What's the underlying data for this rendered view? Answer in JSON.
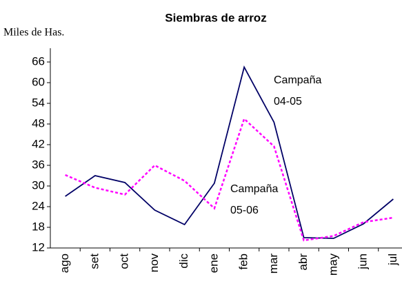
{
  "chart_data": {
    "type": "line",
    "title": "Siembras de arroz",
    "y_label": "Miles de Has.",
    "categories": [
      "ago",
      "set",
      "oct",
      "nov",
      "dic",
      "ene",
      "feb",
      "mar",
      "abr",
      "may",
      "jun",
      "jul"
    ],
    "series": [
      {
        "name": "Campaña 04-05",
        "color": "#000066",
        "values": [
          27,
          33,
          31,
          23,
          18.8,
          30.8,
          64.5,
          48.5,
          15,
          14.8,
          19,
          26.2
        ]
      },
      {
        "name": "Campaña 05-06",
        "color": "#ff00ff",
        "values": [
          33.2,
          29.5,
          27.5,
          36,
          31.5,
          23.5,
          49.5,
          41.5,
          14.2,
          15.5,
          19.5,
          20.8
        ]
      }
    ],
    "ylim": [
      12,
      70
    ],
    "yticks": [
      12,
      18,
      24,
      30,
      36,
      42,
      48,
      54,
      60,
      66
    ]
  }
}
